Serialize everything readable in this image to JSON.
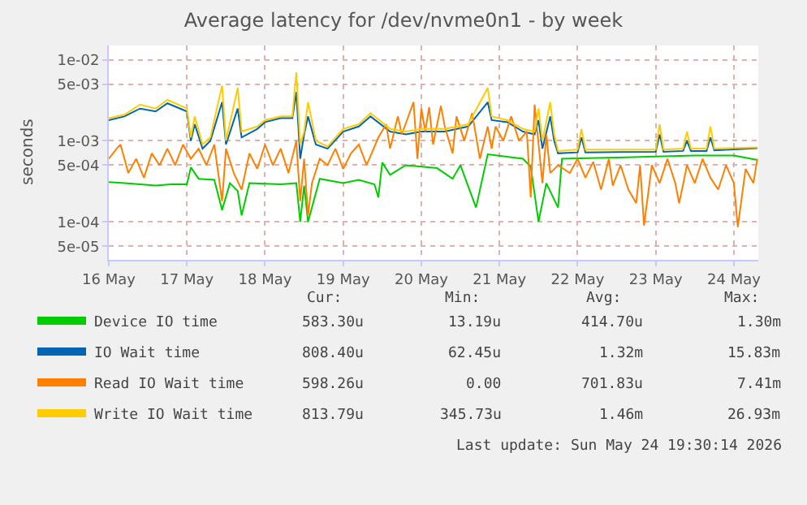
{
  "chart_data": {
    "type": "line",
    "title": "Average latency for /dev/nvme0n1 - by week",
    "ylabel": "seconds",
    "log": "y",
    "grid": true,
    "legend": "bottom left",
    "marker": "none",
    "line_style": "solid",
    "xlim": [
      "2026-05-16T00:00",
      "2026-05-24T07:30"
    ],
    "xticks": [
      {
        "value": "2026-05-16",
        "label": "16 May"
      },
      {
        "value": "2026-05-17",
        "label": "17 May"
      },
      {
        "value": "2026-05-18",
        "label": "18 May"
      },
      {
        "value": "2026-05-19",
        "label": "19 May"
      },
      {
        "value": "2026-05-20",
        "label": "20 May"
      },
      {
        "value": "2026-05-21",
        "label": "21 May"
      },
      {
        "value": "2026-05-22",
        "label": "22 May"
      },
      {
        "value": "2026-05-23",
        "label": "23 May"
      },
      {
        "value": "2026-05-24",
        "label": "24 May"
      }
    ],
    "ylim": [
      3.4e-05,
      0.015
    ],
    "yticks": [
      {
        "value": 5e-05,
        "label": "5e-05"
      },
      {
        "value": 0.0001,
        "label": "1e-04"
      },
      {
        "value": 0.0005,
        "label": "5e-04"
      },
      {
        "value": 0.001,
        "label": "1e-03"
      },
      {
        "value": 0.005,
        "label": "5e-03"
      },
      {
        "value": 0.01,
        "label": "1e-02"
      }
    ],
    "series": [
      {
        "name": "Device IO time",
        "color": "#00cc00",
        "x": [
          "2026-05-16T00:00",
          "2026-05-16T04:48",
          "2026-05-16T09:36",
          "2026-05-16T14:24",
          "2026-05-16T19:12",
          "2026-05-17T00:00",
          "2026-05-17T01:12",
          "2026-05-17T03:36",
          "2026-05-17T08:24",
          "2026-05-17T10:48",
          "2026-05-17T13:12",
          "2026-05-17T15:36",
          "2026-05-17T16:48",
          "2026-05-17T19:12",
          "2026-05-18T04:48",
          "2026-05-18T09:36",
          "2026-05-18T10:48",
          "2026-05-18T12:00",
          "2026-05-18T13:12",
          "2026-05-18T16:48",
          "2026-05-19T00:00",
          "2026-05-19T04:48",
          "2026-05-19T09:36",
          "2026-05-19T10:48",
          "2026-05-19T12:00",
          "2026-05-19T14:24",
          "2026-05-19T19:12",
          "2026-05-20T04:48",
          "2026-05-20T09:36",
          "2026-05-20T12:00",
          "2026-05-20T16:48",
          "2026-05-20T20:24",
          "2026-05-21T07:12",
          "2026-05-21T09:36",
          "2026-05-21T12:00",
          "2026-05-21T14:24",
          "2026-05-21T18:00",
          "2026-05-21T19:12",
          "2026-05-22T12:00",
          "2026-05-23T00:00",
          "2026-05-23T12:00",
          "2026-05-24T00:00",
          "2026-05-24T07:12"
        ],
        "values": [
          0.00031,
          0.0003,
          0.00029,
          0.00028,
          0.00029,
          0.00029,
          0.00047,
          0.00034,
          0.00033,
          0.00014,
          0.0003,
          0.00024,
          0.00012,
          0.0003,
          0.00029,
          0.0003,
          0.0001,
          0.00028,
          0.0001,
          0.00034,
          0.0003,
          0.00033,
          0.00029,
          0.0002,
          0.00054,
          0.00038,
          0.0005,
          0.00046,
          0.00034,
          0.0005,
          0.00015,
          0.00068,
          0.0006,
          0.00048,
          0.0001,
          0.0003,
          0.00015,
          0.0006,
          0.00062,
          0.00064,
          0.00066,
          0.00066,
          0.00058
        ]
      },
      {
        "name": "IO Wait time",
        "color": "#0066b3",
        "x": [
          "2026-05-16T00:00",
          "2026-05-16T04:48",
          "2026-05-16T09:36",
          "2026-05-16T14:24",
          "2026-05-16T18:00",
          "2026-05-17T00:00",
          "2026-05-17T01:12",
          "2026-05-17T02:24",
          "2026-05-17T04:48",
          "2026-05-17T07:12",
          "2026-05-17T10:48",
          "2026-05-17T12:00",
          "2026-05-17T15:36",
          "2026-05-17T16:48",
          "2026-05-17T21:36",
          "2026-05-18T00:00",
          "2026-05-18T04:48",
          "2026-05-18T08:24",
          "2026-05-18T09:36",
          "2026-05-18T10:48",
          "2026-05-18T12:00",
          "2026-05-18T13:12",
          "2026-05-18T15:36",
          "2026-05-18T19:12",
          "2026-05-19T00:00",
          "2026-05-19T04:48",
          "2026-05-19T08:24",
          "2026-05-19T14:24",
          "2026-05-19T19:12",
          "2026-05-20T00:00",
          "2026-05-20T07:12",
          "2026-05-20T14:24",
          "2026-05-20T20:24",
          "2026-05-20T21:36",
          "2026-05-21T02:24",
          "2026-05-21T07:12",
          "2026-05-21T10:48",
          "2026-05-21T12:00",
          "2026-05-21T13:12",
          "2026-05-21T15:36",
          "2026-05-21T16:48",
          "2026-05-21T18:00",
          "2026-05-22T00:00",
          "2026-05-22T01:12",
          "2026-05-22T02:24",
          "2026-05-23T00:00",
          "2026-05-23T01:12",
          "2026-05-23T02:24",
          "2026-05-23T08:24",
          "2026-05-23T09:36",
          "2026-05-23T10:48",
          "2026-05-23T15:36",
          "2026-05-23T16:48",
          "2026-05-23T18:00",
          "2026-05-24T07:12"
        ],
        "values": [
          0.0018,
          0.002,
          0.0025,
          0.0023,
          0.0029,
          0.0023,
          0.001,
          0.0016,
          0.0008,
          0.001,
          0.003,
          0.0009,
          0.0025,
          0.0011,
          0.0014,
          0.0017,
          0.0019,
          0.0019,
          0.004,
          0.0006,
          0.0012,
          0.002,
          0.0009,
          0.0008,
          0.0013,
          0.0015,
          0.002,
          0.0013,
          0.0012,
          0.0013,
          0.0013,
          0.0015,
          0.003,
          0.0018,
          0.0017,
          0.0013,
          0.0012,
          0.0018,
          0.0008,
          0.002,
          0.001,
          0.0007,
          0.00072,
          0.0011,
          0.00072,
          0.00073,
          0.0012,
          0.00073,
          0.00075,
          0.001,
          0.00075,
          0.00075,
          0.0011,
          0.00076,
          0.00081
        ]
      },
      {
        "name": "Read IO Wait time",
        "color": "#ff8000",
        "x": [
          "2026-05-16T00:00",
          "2026-05-16T02:24",
          "2026-05-16T03:36",
          "2026-05-16T06:00",
          "2026-05-16T08:24",
          "2026-05-16T10:48",
          "2026-05-16T13:12",
          "2026-05-16T15:36",
          "2026-05-16T18:00",
          "2026-05-16T20:24",
          "2026-05-16T22:48",
          "2026-05-17T01:12",
          "2026-05-17T03:36",
          "2026-05-17T06:00",
          "2026-05-17T08:24",
          "2026-05-17T10:48",
          "2026-05-17T12:00",
          "2026-05-17T14:24",
          "2026-05-17T16:48",
          "2026-05-17T19:12",
          "2026-05-17T21:36",
          "2026-05-18T00:00",
          "2026-05-18T02:24",
          "2026-05-18T04:48",
          "2026-05-18T07:12",
          "2026-05-18T09:36",
          "2026-05-18T10:48",
          "2026-05-18T12:00",
          "2026-05-18T13:12",
          "2026-05-18T14:24",
          "2026-05-18T16:48",
          "2026-05-18T19:12",
          "2026-05-18T21:36",
          "2026-05-19T00:00",
          "2026-05-19T02:24",
          "2026-05-19T04:48",
          "2026-05-19T07:12",
          "2026-05-19T10:48",
          "2026-05-19T13:12",
          "2026-05-19T14:24",
          "2026-05-19T16:48",
          "2026-05-19T18:00",
          "2026-05-19T21:36",
          "2026-05-19T22:48",
          "2026-05-20T00:00",
          "2026-05-20T01:12",
          "2026-05-20T02:24",
          "2026-05-20T03:36",
          "2026-05-20T06:00",
          "2026-05-20T07:12",
          "2026-05-20T09:36",
          "2026-05-20T10:48",
          "2026-05-20T13:12",
          "2026-05-20T15:36",
          "2026-05-20T18:00",
          "2026-05-20T20:24",
          "2026-05-20T21:36",
          "2026-05-20T22:48",
          "2026-05-21T01:12",
          "2026-05-21T03:36",
          "2026-05-21T06:00",
          "2026-05-21T08:24",
          "2026-05-21T09:36",
          "2026-05-21T10:48",
          "2026-05-21T13:12",
          "2026-05-21T14:24",
          "2026-05-21T15:36",
          "2026-05-21T18:00",
          "2026-05-21T21:36",
          "2026-05-22T00:00",
          "2026-05-22T02:24",
          "2026-05-22T04:48",
          "2026-05-22T07:12",
          "2026-05-22T09:36",
          "2026-05-22T10:48",
          "2026-05-22T13:12",
          "2026-05-22T15:36",
          "2026-05-22T18:00",
          "2026-05-22T19:12",
          "2026-05-22T20:24",
          "2026-05-22T22:48",
          "2026-05-23T01:12",
          "2026-05-23T03:36",
          "2026-05-23T06:00",
          "2026-05-23T07:12",
          "2026-05-23T09:36",
          "2026-05-23T12:00",
          "2026-05-23T14:24",
          "2026-05-23T16:48",
          "2026-05-23T19:12",
          "2026-05-23T21:36",
          "2026-05-24T00:00",
          "2026-05-24T01:12",
          "2026-05-24T03:36",
          "2026-05-24T06:00",
          "2026-05-24T07:12"
        ],
        "values": [
          0.0006,
          0.0008,
          0.0009,
          0.0004,
          0.0006,
          0.00035,
          0.0007,
          0.0005,
          0.0008,
          0.0005,
          0.0009,
          0.0006,
          0.0008,
          0.0005,
          0.0009,
          0.00018,
          0.0008,
          0.0004,
          0.00025,
          0.0007,
          0.00045,
          0.0009,
          0.0005,
          0.0008,
          0.0004,
          0.001,
          0.00018,
          0.0006,
          0.00012,
          0.0003,
          0.0006,
          0.0005,
          0.0008,
          0.00045,
          0.0007,
          0.0009,
          0.0005,
          0.0011,
          0.0016,
          0.0008,
          0.002,
          0.0012,
          0.003,
          0.0006,
          0.0025,
          0.0013,
          0.0026,
          0.0009,
          0.0027,
          0.0015,
          0.0007,
          0.002,
          0.001,
          0.0022,
          0.0006,
          0.0015,
          0.0008,
          0.0015,
          0.001,
          0.002,
          0.001,
          0.0013,
          0.0002,
          0.0028,
          0.0003,
          0.0012,
          0.0004,
          0.0005,
          0.0004,
          0.0006,
          0.00035,
          0.00055,
          0.00025,
          0.0006,
          0.00028,
          0.0005,
          0.00025,
          0.00017,
          0.0005,
          9e-05,
          0.0005,
          0.0003,
          0.0006,
          0.0003,
          0.00017,
          0.0005,
          0.0003,
          0.0006,
          0.00035,
          0.00025,
          0.0005,
          0.0003,
          8.6e-05,
          0.00045,
          0.0003,
          0.0006
        ]
      },
      {
        "name": "Write IO Wait time",
        "color": "#ffcc00",
        "x": [
          "2026-05-16T00:00",
          "2026-05-16T04:48",
          "2026-05-16T09:36",
          "2026-05-16T14:24",
          "2026-05-16T18:00",
          "2026-05-17T00:00",
          "2026-05-17T01:12",
          "2026-05-17T02:24",
          "2026-05-17T04:48",
          "2026-05-17T07:12",
          "2026-05-17T10:48",
          "2026-05-17T12:00",
          "2026-05-17T15:36",
          "2026-05-17T16:48",
          "2026-05-17T21:36",
          "2026-05-18T00:00",
          "2026-05-18T04:48",
          "2026-05-18T08:24",
          "2026-05-18T09:36",
          "2026-05-18T10:48",
          "2026-05-18T12:00",
          "2026-05-18T13:12",
          "2026-05-18T15:36",
          "2026-05-18T19:12",
          "2026-05-19T00:00",
          "2026-05-19T04:48",
          "2026-05-19T08:24",
          "2026-05-19T14:24",
          "2026-05-19T19:12",
          "2026-05-20T00:00",
          "2026-05-20T07:12",
          "2026-05-20T14:24",
          "2026-05-20T20:24",
          "2026-05-20T21:36",
          "2026-05-21T02:24",
          "2026-05-21T07:12",
          "2026-05-21T10:48",
          "2026-05-21T12:00",
          "2026-05-21T13:12",
          "2026-05-21T15:36",
          "2026-05-21T16:48",
          "2026-05-21T18:00",
          "2026-05-22T00:00",
          "2026-05-22T01:12",
          "2026-05-22T02:24",
          "2026-05-23T00:00",
          "2026-05-23T01:12",
          "2026-05-23T02:24",
          "2026-05-23T08:24",
          "2026-05-23T09:36",
          "2026-05-23T10:48",
          "2026-05-23T15:36",
          "2026-05-23T16:48",
          "2026-05-23T18:00",
          "2026-05-24T07:12"
        ],
        "values": [
          0.0019,
          0.0021,
          0.0028,
          0.0025,
          0.0032,
          0.0025,
          0.0011,
          0.002,
          0.0009,
          0.0011,
          0.0048,
          0.001,
          0.0045,
          0.0013,
          0.0015,
          0.0018,
          0.002,
          0.002,
          0.007,
          0.0009,
          0.0013,
          0.003,
          0.001,
          0.00085,
          0.0014,
          0.0016,
          0.0022,
          0.0014,
          0.0013,
          0.0014,
          0.0014,
          0.0016,
          0.0045,
          0.002,
          0.0018,
          0.0014,
          0.0013,
          0.0025,
          0.001,
          0.003,
          0.0012,
          0.00075,
          0.00078,
          0.0014,
          0.00078,
          0.00078,
          0.0016,
          0.00078,
          0.0008,
          0.0013,
          0.0008,
          0.0008,
          0.0015,
          0.0008,
          0.00083
        ]
      }
    ],
    "annotations": [
      "Cur:",
      "Min:",
      "Avg:",
      "Max:",
      "583.30u",
      "13.19u",
      "414.70u",
      "1.30m",
      "808.40u",
      "62.45u",
      "1.32m",
      "15.83m",
      "598.26u",
      "0.00",
      "701.83u",
      "7.41m",
      "813.79u",
      "345.73u",
      "1.46m",
      "26.93m",
      "Last update: Sun May 24 19:30:14 2026"
    ]
  }
}
